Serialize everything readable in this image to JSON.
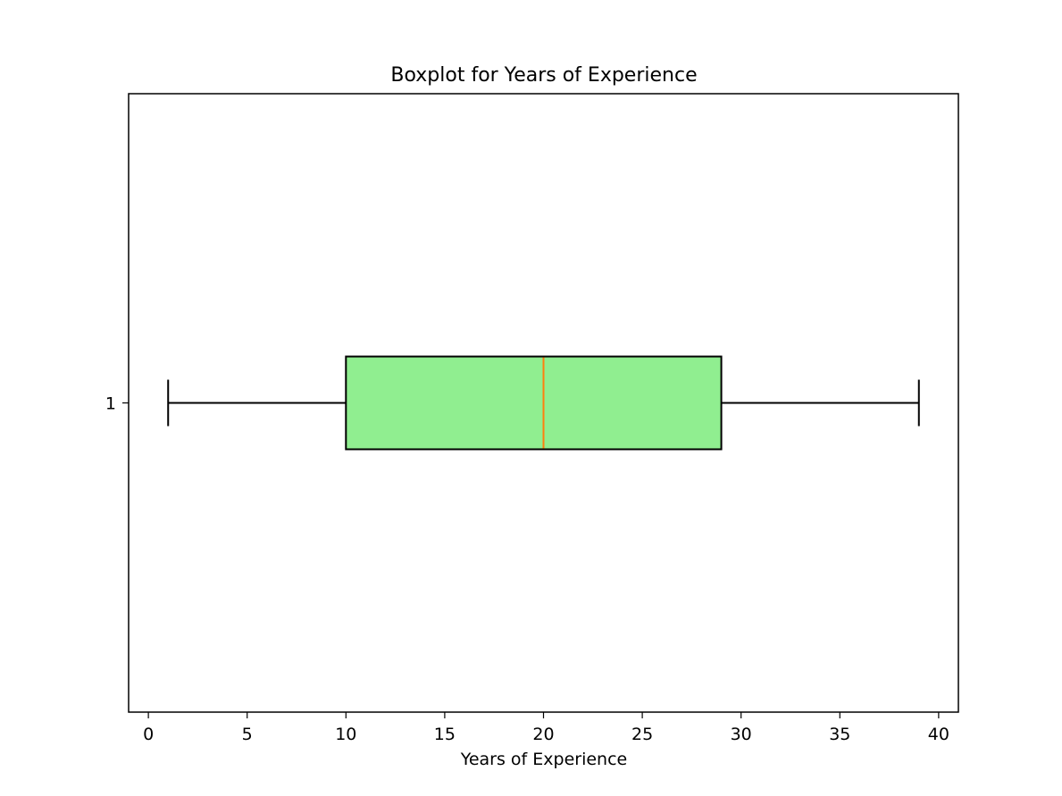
{
  "chart_data": {
    "type": "boxplot",
    "orientation": "horizontal",
    "title": "Boxplot for Years of Experience",
    "xlabel": "Years of Experience",
    "ylabel": "",
    "xlim": [
      -1,
      41
    ],
    "x_ticks": [
      0,
      5,
      10,
      15,
      20,
      25,
      30,
      35,
      40
    ],
    "y_ticks": [
      "1"
    ],
    "grid": false,
    "series": [
      {
        "category": "1",
        "whisker_low": 1,
        "q1": 10,
        "median": 20,
        "q3": 29,
        "whisker_high": 39
      }
    ],
    "colors": {
      "box_fill": "#90ee90",
      "box_edge": "#000000",
      "median_line": "#ff7f0e",
      "whisker": "#000000"
    }
  }
}
